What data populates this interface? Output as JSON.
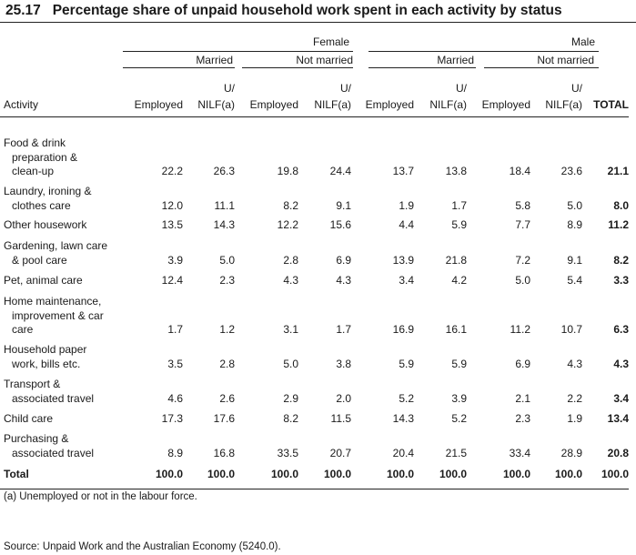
{
  "title": {
    "number": "25.17",
    "text": "Percentage share of unpaid household work spent in each activity by status"
  },
  "header": {
    "group_female": "Female",
    "group_male": "Male",
    "married": "Married",
    "not_married": "Not married",
    "activity": "Activity",
    "employed": "Employed",
    "u_top": "U/",
    "nilf": "NILF(a)",
    "total": "TOTAL"
  },
  "rows": [
    {
      "label_lines": [
        "Food & drink",
        "preparation &",
        "clean-up"
      ],
      "values": [
        "22.2",
        "26.3",
        "19.8",
        "24.4",
        "13.7",
        "13.8",
        "18.4",
        "23.6"
      ],
      "total": "21.1"
    },
    {
      "label_lines": [
        "Laundry, ironing &",
        "clothes care"
      ],
      "values": [
        "12.0",
        "11.1",
        "8.2",
        "9.1",
        "1.9",
        "1.7",
        "5.8",
        "5.0"
      ],
      "total": "8.0"
    },
    {
      "label_lines": [
        "Other housework"
      ],
      "values": [
        "13.5",
        "14.3",
        "12.2",
        "15.6",
        "4.4",
        "5.9",
        "7.7",
        "8.9"
      ],
      "total": "11.2"
    },
    {
      "label_lines": [
        "Gardening, lawn care",
        "& pool care"
      ],
      "values": [
        "3.9",
        "5.0",
        "2.8",
        "6.9",
        "13.9",
        "21.8",
        "7.2",
        "9.1"
      ],
      "total": "8.2"
    },
    {
      "label_lines": [
        "Pet, animal care"
      ],
      "values": [
        "12.4",
        "2.3",
        "4.3",
        "4.3",
        "3.4",
        "4.2",
        "5.0",
        "5.4"
      ],
      "total": "3.3"
    },
    {
      "label_lines": [
        "Home maintenance,",
        "improvement & car",
        "care"
      ],
      "values": [
        "1.7",
        "1.2",
        "3.1",
        "1.7",
        "16.9",
        "16.1",
        "11.2",
        "10.7"
      ],
      "total": "6.3"
    },
    {
      "label_lines": [
        "Household paper",
        "work, bills etc."
      ],
      "values": [
        "3.5",
        "2.8",
        "5.0",
        "3.8",
        "5.9",
        "5.9",
        "6.9",
        "4.3"
      ],
      "total": "4.3"
    },
    {
      "label_lines": [
        "Transport &",
        "associated travel"
      ],
      "values": [
        "4.6",
        "2.6",
        "2.9",
        "2.0",
        "5.2",
        "3.9",
        "2.1",
        "2.2"
      ],
      "total": "3.4"
    },
    {
      "label_lines": [
        "Child care"
      ],
      "values": [
        "17.3",
        "17.6",
        "8.2",
        "11.5",
        "14.3",
        "5.2",
        "2.3",
        "1.9"
      ],
      "total": "13.4"
    },
    {
      "label_lines": [
        "Purchasing &",
        "associated travel"
      ],
      "values": [
        "8.9",
        "16.8",
        "33.5",
        "20.7",
        "20.4",
        "21.5",
        "33.4",
        "28.9"
      ],
      "total": "20.8"
    }
  ],
  "total_row": {
    "label": "Total",
    "values": [
      "100.0",
      "100.0",
      "100.0",
      "100.0",
      "100.0",
      "100.0",
      "100.0",
      "100.0"
    ],
    "total": "100.0"
  },
  "footnote": "(a) Unemployed or not in the labour force.",
  "source": "Source: Unpaid Work and the Australian Economy (5240.0)."
}
